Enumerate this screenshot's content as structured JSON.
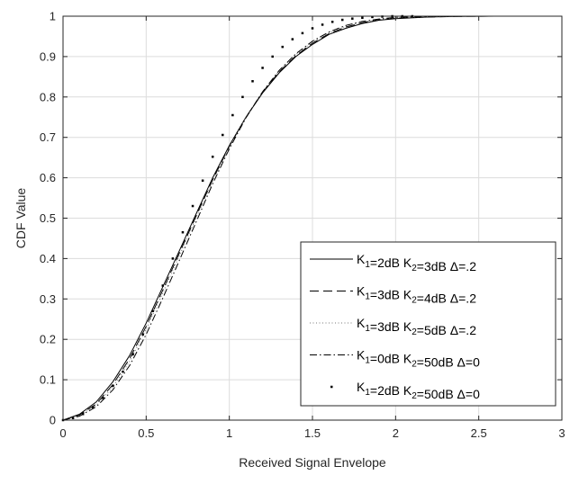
{
  "chart_data": {
    "type": "line",
    "xlabel": "Received Signal Envelope",
    "ylabel": "CDF Value",
    "xlim": [
      0,
      3
    ],
    "ylim": [
      0,
      1
    ],
    "xticks": [
      "0",
      "0.5",
      "1",
      "1.5",
      "2",
      "2.5",
      "3"
    ],
    "yticks": [
      "0",
      "0.1",
      "0.2",
      "0.3",
      "0.4",
      "0.5",
      "0.6",
      "0.7",
      "0.8",
      "0.9",
      "1"
    ],
    "grid": true,
    "legend_position": "bottom-right",
    "series": [
      {
        "name": "K1=2dB K2=3dB Δ=.2",
        "legend": {
          "k1": "2dB",
          "k2": "3dB",
          "delta": "Δ=.2"
        },
        "style": "solid",
        "color": "#000000",
        "x": [
          0,
          0.1,
          0.2,
          0.3,
          0.4,
          0.5,
          0.6,
          0.7,
          0.8,
          0.9,
          1.0,
          1.1,
          1.2,
          1.3,
          1.4,
          1.5,
          1.6,
          1.7,
          1.8,
          1.9,
          2.0,
          2.2,
          2.4,
          2.6,
          2.86
        ],
        "y": [
          0,
          0.015,
          0.045,
          0.095,
          0.16,
          0.24,
          0.33,
          0.42,
          0.51,
          0.6,
          0.68,
          0.75,
          0.81,
          0.86,
          0.9,
          0.93,
          0.955,
          0.97,
          0.982,
          0.99,
          0.994,
          0.998,
          0.9995,
          1.0,
          1.0
        ]
      },
      {
        "name": "K1=3dB K2=4dB Δ=.2",
        "legend": {
          "k1": "3dB",
          "k2": "4dB",
          "delta": "Δ=.2"
        },
        "style": "dashed",
        "color": "#000000",
        "x": [
          0,
          0.1,
          0.2,
          0.3,
          0.4,
          0.5,
          0.6,
          0.7,
          0.8,
          0.9,
          1.0,
          1.1,
          1.2,
          1.3,
          1.4,
          1.5,
          1.6,
          1.7,
          1.8,
          1.9,
          2.0,
          2.2,
          2.4,
          2.6,
          2.86
        ],
        "y": [
          0,
          0.013,
          0.04,
          0.088,
          0.152,
          0.232,
          0.322,
          0.414,
          0.505,
          0.595,
          0.678,
          0.75,
          0.812,
          0.862,
          0.902,
          0.933,
          0.957,
          0.973,
          0.984,
          0.991,
          0.995,
          0.998,
          0.9995,
          1.0,
          1.0
        ]
      },
      {
        "name": "K1=3dB K2=5dB Δ=.2",
        "legend": {
          "k1": "3dB",
          "k2": "5dB",
          "delta": "Δ=.2"
        },
        "style": "dotted",
        "color": "#777777",
        "x": [
          0,
          0.1,
          0.2,
          0.3,
          0.4,
          0.5,
          0.6,
          0.7,
          0.8,
          0.9,
          1.0,
          1.1,
          1.2,
          1.3,
          1.4,
          1.5,
          1.6,
          1.7,
          1.8,
          1.9,
          2.0,
          2.2,
          2.4,
          2.6,
          2.86
        ],
        "y": [
          0,
          0.012,
          0.037,
          0.082,
          0.145,
          0.225,
          0.315,
          0.408,
          0.5,
          0.592,
          0.676,
          0.75,
          0.813,
          0.865,
          0.905,
          0.936,
          0.959,
          0.975,
          0.985,
          0.992,
          0.996,
          0.999,
          1.0,
          1.0,
          1.0
        ]
      },
      {
        "name": "K1=0dB K2=50dB Δ=0",
        "legend": {
          "k1": "0dB",
          "k2": "50dB",
          "delta": "Δ=0"
        },
        "style": "dashdot",
        "color": "#000000",
        "x": [
          0,
          0.1,
          0.2,
          0.3,
          0.4,
          0.5,
          0.6,
          0.7,
          0.8,
          0.9,
          1.0,
          1.1,
          1.2,
          1.3,
          1.4,
          1.5,
          1.6,
          1.7,
          1.8,
          1.9,
          2.0,
          2.2,
          2.4,
          2.6,
          2.86
        ],
        "y": [
          0,
          0.01,
          0.033,
          0.075,
          0.135,
          0.212,
          0.302,
          0.396,
          0.49,
          0.585,
          0.672,
          0.748,
          0.813,
          0.866,
          0.907,
          0.938,
          0.961,
          0.977,
          0.987,
          0.993,
          0.997,
          0.999,
          1.0,
          1.0,
          1.0
        ]
      },
      {
        "name": "K1=2dB K2=50dB Δ=0",
        "legend": {
          "k1": "2dB",
          "k2": "50dB",
          "delta": "Δ=0"
        },
        "style": "points",
        "color": "#000000",
        "x": [
          0,
          0.06,
          0.12,
          0.18,
          0.24,
          0.3,
          0.36,
          0.42,
          0.48,
          0.54,
          0.6,
          0.66,
          0.72,
          0.78,
          0.84,
          0.9,
          0.96,
          1.02,
          1.08,
          1.14,
          1.2,
          1.26,
          1.32,
          1.38,
          1.44,
          1.5,
          1.56,
          1.62,
          1.68,
          1.74,
          1.8,
          1.86,
          1.92,
          1.98,
          2.04,
          2.1
        ],
        "y": [
          0,
          0.005,
          0.015,
          0.032,
          0.055,
          0.085,
          0.12,
          0.163,
          0.212,
          0.27,
          0.333,
          0.4,
          0.465,
          0.53,
          0.593,
          0.652,
          0.706,
          0.755,
          0.8,
          0.839,
          0.872,
          0.9,
          0.924,
          0.943,
          0.958,
          0.97,
          0.979,
          0.986,
          0.991,
          0.994,
          0.996,
          0.998,
          0.999,
          1.0,
          1.0,
          1.0
        ]
      }
    ]
  }
}
